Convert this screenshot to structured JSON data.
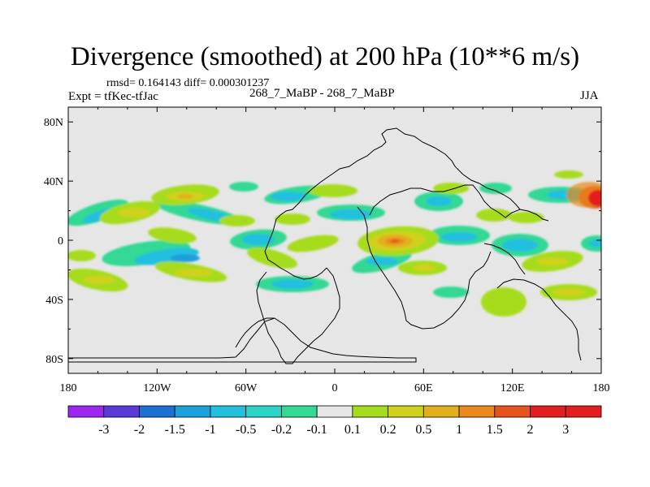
{
  "title": "Divergence (smoothed) at 200 hPa (10**6 m/s)",
  "stats": "rmsd= 0.164143 diff= 0.000301237",
  "experiment": "Expt = tfKec-tfJac",
  "case_name": "268_7_MaBP - 268_7_MaBP",
  "season": "JJA",
  "map": {
    "projection": "cylindrical equidistant",
    "lon_range": [
      -180,
      180
    ],
    "lat_range": [
      -90,
      90
    ],
    "x_tick_labels": [
      "180",
      "120W",
      "60W",
      "0",
      "60E",
      "120E",
      "180"
    ],
    "y_tick_labels": [
      "80N",
      "40N",
      "0",
      "40S",
      "80S"
    ],
    "background_color": "#e6e6e6"
  },
  "colorbar": {
    "labels": [
      "-3",
      "-2",
      "-1.5",
      "-1",
      "-0.5",
      "-0.2",
      "-0.1",
      "0.1",
      "0.2",
      "0.5",
      "1",
      "1.5",
      "2",
      "3"
    ],
    "colors": [
      "#9d27ee",
      "#5a3ad6",
      "#1c70d3",
      "#1ea0dc",
      "#22c0de",
      "#2ad2c8",
      "#32d894",
      "#e6e6e6",
      "#a6dc1e",
      "#cfd11c",
      "#e2b01c",
      "#e88a1c",
      "#e6541e",
      "#e31e1e"
    ]
  }
}
